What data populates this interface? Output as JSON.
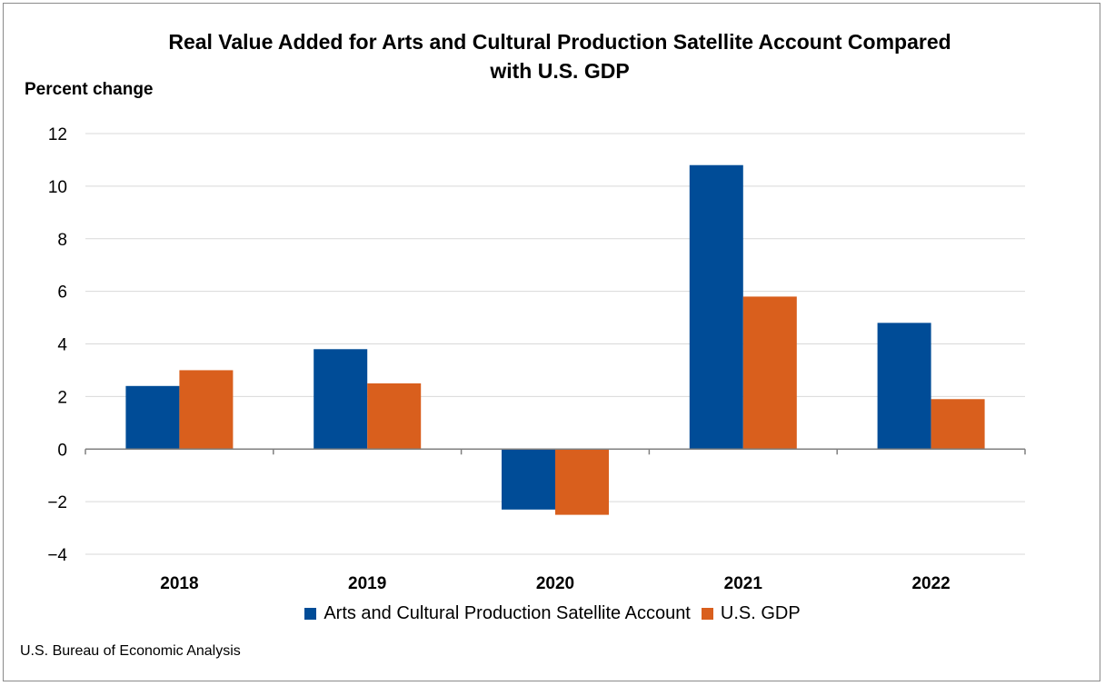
{
  "chart_data": {
    "type": "bar",
    "title": "Real Value Added for Arts and Cultural Production Satellite Account Compared with U.S. GDP",
    "title_lines": [
      "Real Value Added for Arts and Cultural Production Satellite Account Compared",
      "with U.S. GDP"
    ],
    "ylabel": "Percent change",
    "xlabel": "",
    "categories": [
      "2018",
      "2019",
      "2020",
      "2021",
      "2022"
    ],
    "series": [
      {
        "name": "Arts and Cultural Production Satellite Account",
        "values": [
          2.4,
          3.8,
          -2.3,
          10.8,
          4.8
        ],
        "color": "#004c97"
      },
      {
        "name": "U.S. GDP",
        "values": [
          3.0,
          2.5,
          -2.5,
          5.8,
          1.9
        ],
        "color": "#d95f1d"
      }
    ],
    "ylim": [
      -4,
      12
    ],
    "yticks": [
      "12",
      "10",
      "8",
      "6",
      "4",
      "2",
      "0",
      "−2",
      "−4"
    ],
    "grid": true,
    "legend_position": "bottom",
    "source": "U.S. Bureau of Economic Analysis"
  }
}
